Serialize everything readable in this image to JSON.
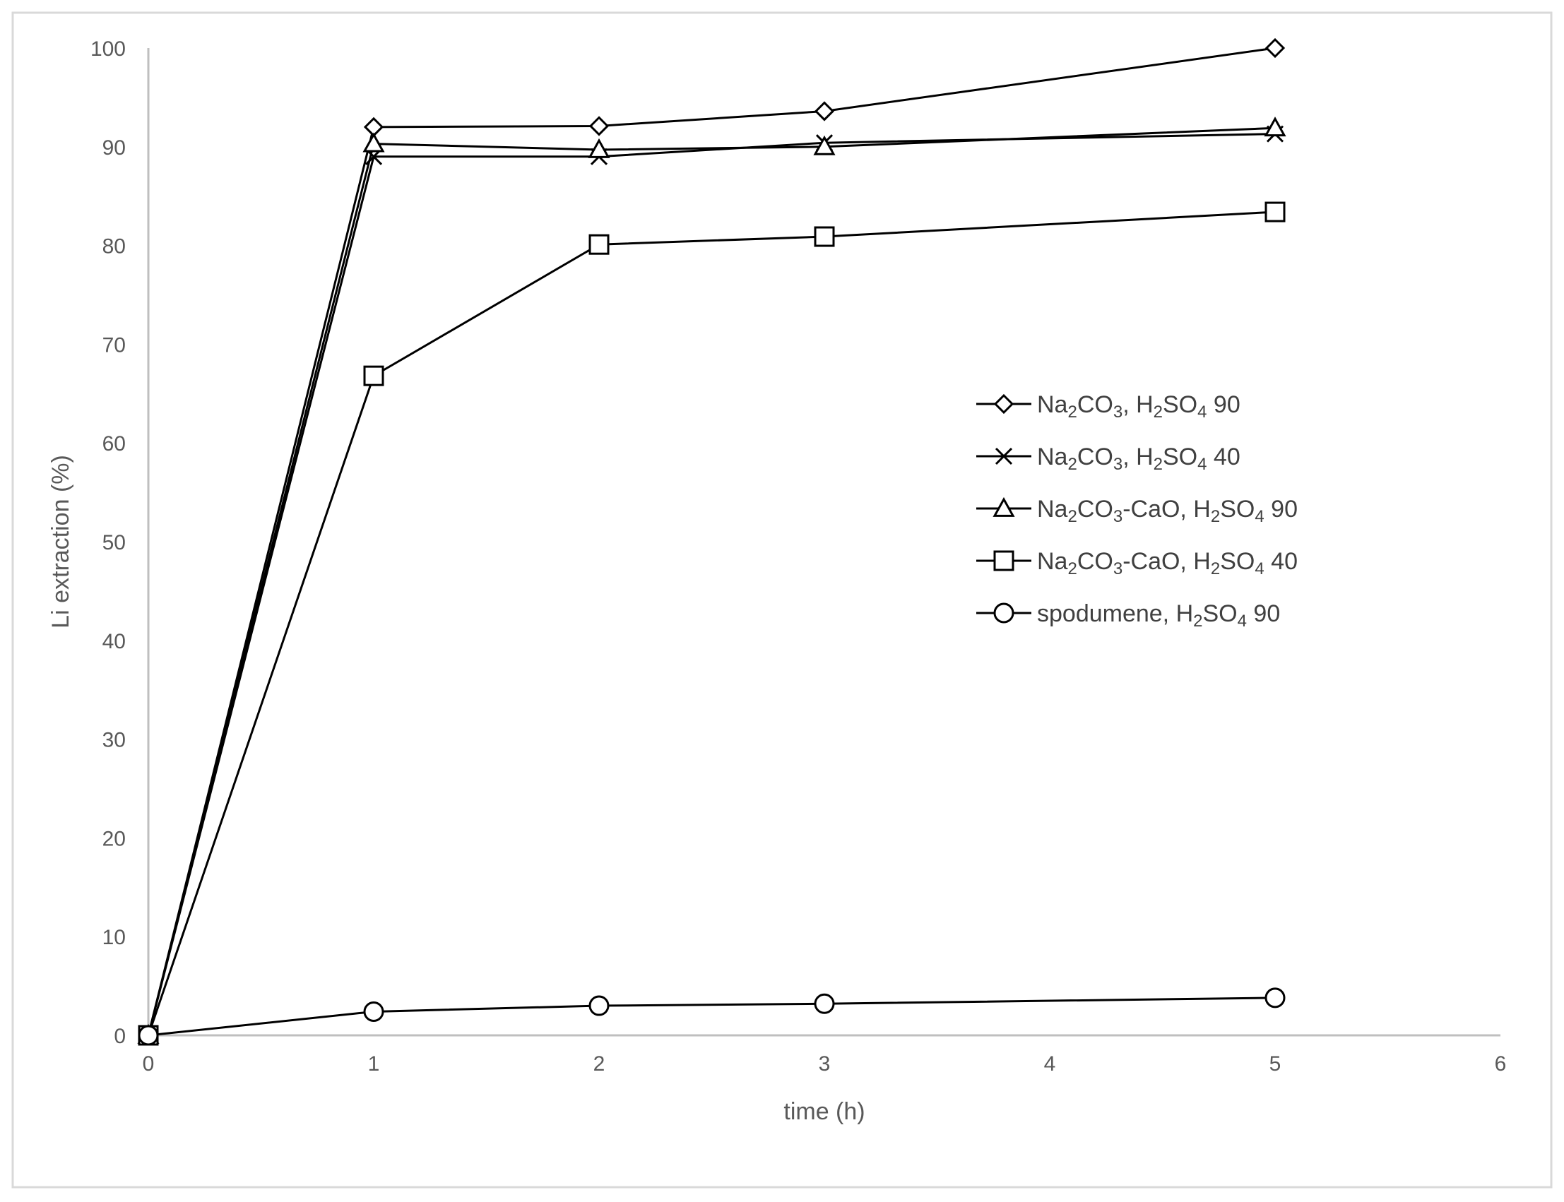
{
  "chart_data": {
    "type": "line",
    "title": "",
    "xlabel": "time (h)",
    "ylabel": "Li extraction (%)",
    "xlim": [
      0,
      6
    ],
    "ylim": [
      0,
      100
    ],
    "x_ticks": [
      0,
      1,
      2,
      3,
      4,
      5,
      6
    ],
    "y_ticks": [
      0,
      10,
      20,
      30,
      40,
      50,
      60,
      70,
      80,
      90,
      100
    ],
    "grid": false,
    "legend_position": "right-middle",
    "line_color": "#000000",
    "series": [
      {
        "name_parts": [
          "Na",
          "2",
          "CO",
          "3",
          ", H",
          "2",
          "SO",
          "4",
          " 90"
        ],
        "marker": "diamond",
        "x": [
          0,
          1,
          2,
          3,
          5
        ],
        "y": [
          0,
          92.0,
          92.1,
          93.6,
          100.0
        ]
      },
      {
        "name_parts": [
          "Na",
          "2",
          "CO",
          "3",
          ", H",
          "2",
          "SO",
          "4",
          " 40"
        ],
        "marker": "cross",
        "x": [
          0,
          1,
          2,
          3,
          5
        ],
        "y": [
          0,
          89.0,
          89.0,
          90.4,
          91.3
        ]
      },
      {
        "name_parts": [
          "Na",
          "2",
          "CO",
          "3",
          "-CaO, H",
          "2",
          "SO",
          "4",
          " 90"
        ],
        "marker": "triangle",
        "x": [
          0,
          1,
          2,
          3,
          5
        ],
        "y": [
          0,
          90.3,
          89.7,
          90.0,
          91.9
        ]
      },
      {
        "name_parts": [
          "Na",
          "2",
          "CO",
          "3",
          "-CaO, H",
          "2",
          "SO",
          "4",
          " 40"
        ],
        "marker": "square",
        "x": [
          0,
          1,
          2,
          3,
          5
        ],
        "y": [
          0,
          66.8,
          80.1,
          80.9,
          83.4
        ]
      },
      {
        "name_parts": [
          "spodumene, H",
          "2",
          "SO",
          "4",
          " 90"
        ],
        "marker": "circle",
        "x": [
          0,
          1,
          2,
          3,
          5
        ],
        "y": [
          0,
          2.4,
          3.0,
          3.2,
          3.8
        ]
      }
    ]
  }
}
